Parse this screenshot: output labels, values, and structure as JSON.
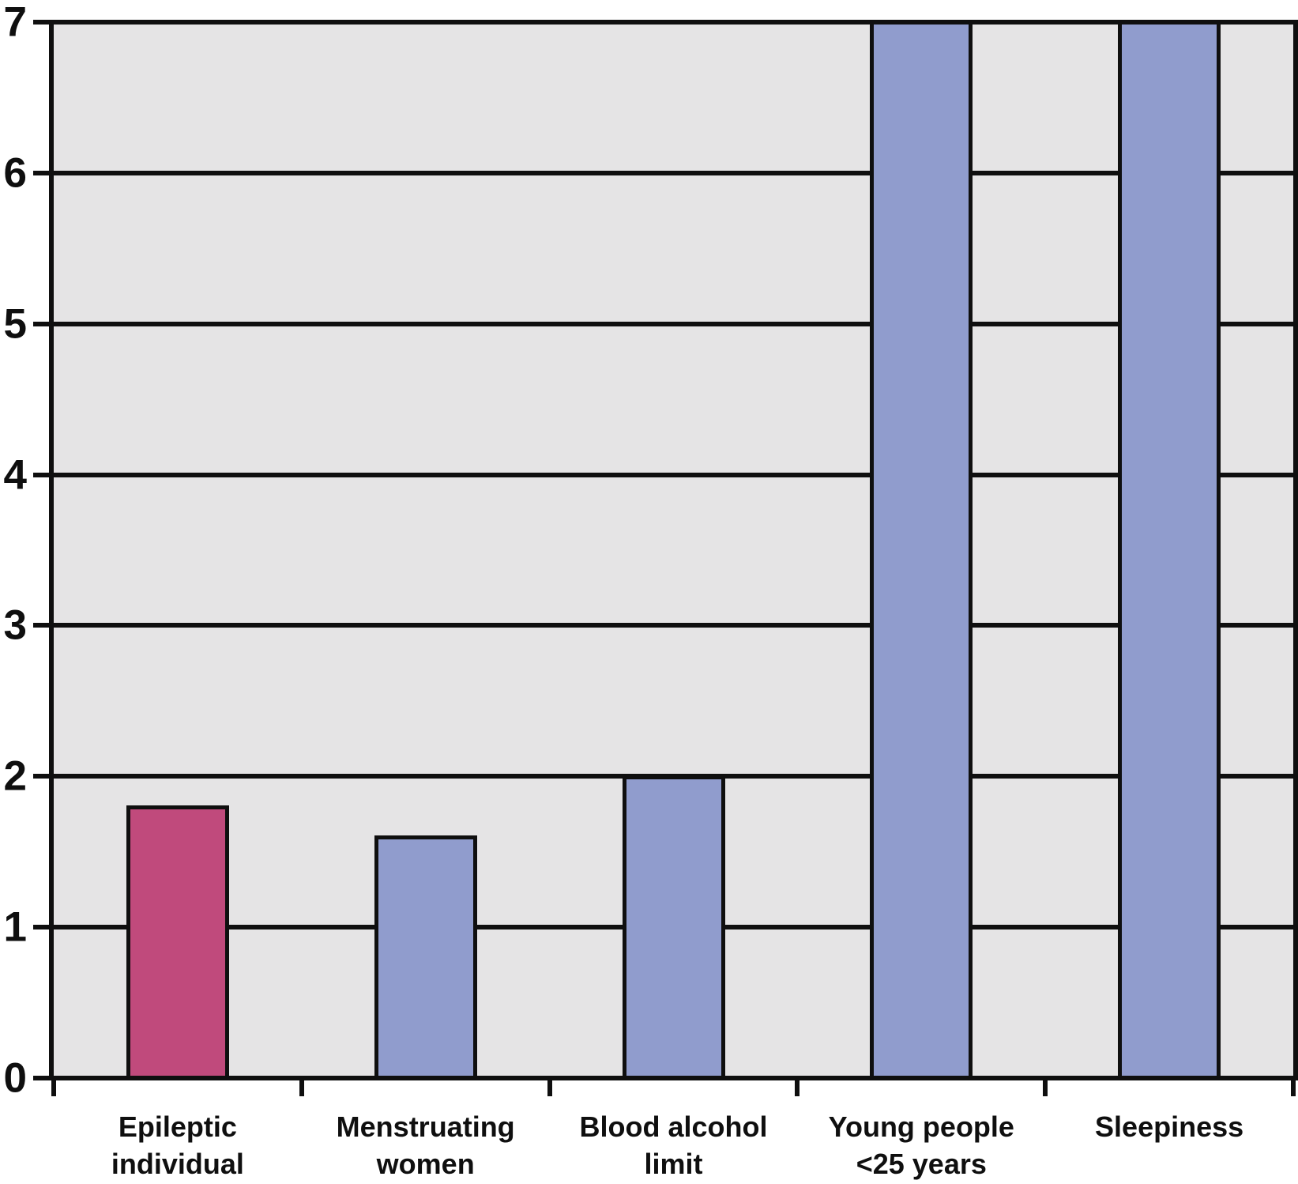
{
  "chart_data": {
    "type": "bar",
    "title": "",
    "xlabel": "",
    "ylabel": "",
    "categories": [
      "Epileptic\nindividual",
      "Menstruating\nwomen",
      "Blood alcohol\nlimit",
      "Young people\n<25 years",
      "Sleepiness"
    ],
    "values": [
      1.8,
      1.6,
      2.0,
      7,
      7
    ],
    "ylim": [
      0,
      7
    ],
    "yticks": [
      0,
      1,
      2,
      3,
      4,
      5,
      6,
      7
    ],
    "grid": "horizontal",
    "legend": "none",
    "colors": {
      "bar_colors": [
        "#c04a7c",
        "#909ccd",
        "#909ccd",
        "#909ccd",
        "#909ccd"
      ],
      "plot_background": "#e5e4e5",
      "line": "#0f0f0f",
      "text": "#0f0f0f",
      "page_background": "#ffffff"
    }
  }
}
